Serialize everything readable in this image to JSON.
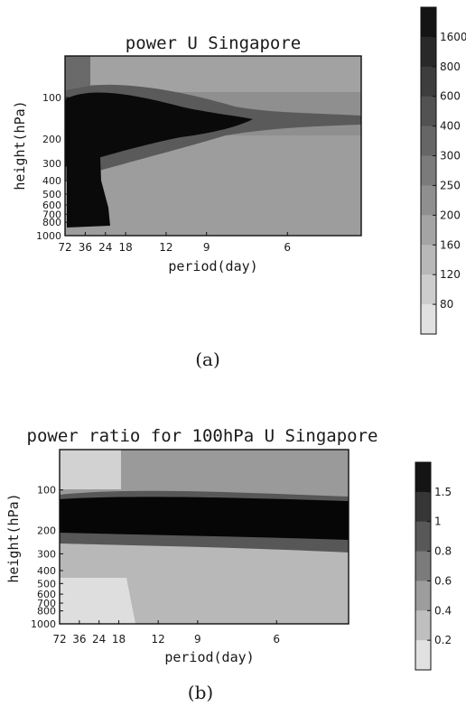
{
  "chart_data": [
    {
      "type": "heatmap",
      "panel_label": "(a)",
      "title": "power U Singapore",
      "xlabel": "period(day)",
      "ylabel": "height(hPa)",
      "x_ticks": [
        "72",
        "36",
        "24",
        "18",
        "12",
        "9",
        "6"
      ],
      "y_ticks": [
        "100",
        "200",
        "300",
        "400",
        "500",
        "600",
        "700",
        "800",
        "1000"
      ],
      "x_tick_values": [
        72,
        36,
        24,
        18,
        12,
        9,
        6
      ],
      "y_tick_values": [
        100,
        200,
        300,
        400,
        500,
        600,
        700,
        800,
        1000
      ],
      "colorbar_ticks": [
        "1600",
        "800",
        "600",
        "400",
        "300",
        "250",
        "200",
        "160",
        "120",
        "80"
      ],
      "colorbar_values": [
        1600,
        800,
        600,
        400,
        300,
        250,
        200,
        160,
        120,
        80
      ],
      "colors": {
        "high": "#050505",
        "low": "#d8d8d8"
      }
    },
    {
      "type": "heatmap",
      "panel_label": "(b)",
      "title": "power ratio for 100hPa U Singapore",
      "xlabel": "period(day)",
      "ylabel": "height(hPa)",
      "x_ticks": [
        "72",
        "36",
        "24",
        "18",
        "12",
        "9",
        "6"
      ],
      "y_ticks": [
        "100",
        "200",
        "300",
        "400",
        "500",
        "600",
        "700",
        "800",
        "1000"
      ],
      "x_tick_values": [
        72,
        36,
        24,
        18,
        12,
        9,
        6
      ],
      "y_tick_values": [
        100,
        200,
        300,
        400,
        500,
        600,
        700,
        800,
        1000
      ],
      "colorbar_ticks": [
        "1.5",
        "1",
        "0.8",
        "0.6",
        "0.4",
        "0.2"
      ],
      "colorbar_values": [
        1.5,
        1,
        0.8,
        0.6,
        0.4,
        0.2
      ],
      "colors": {
        "high": "#050505",
        "low": "#eaeaea"
      }
    }
  ]
}
